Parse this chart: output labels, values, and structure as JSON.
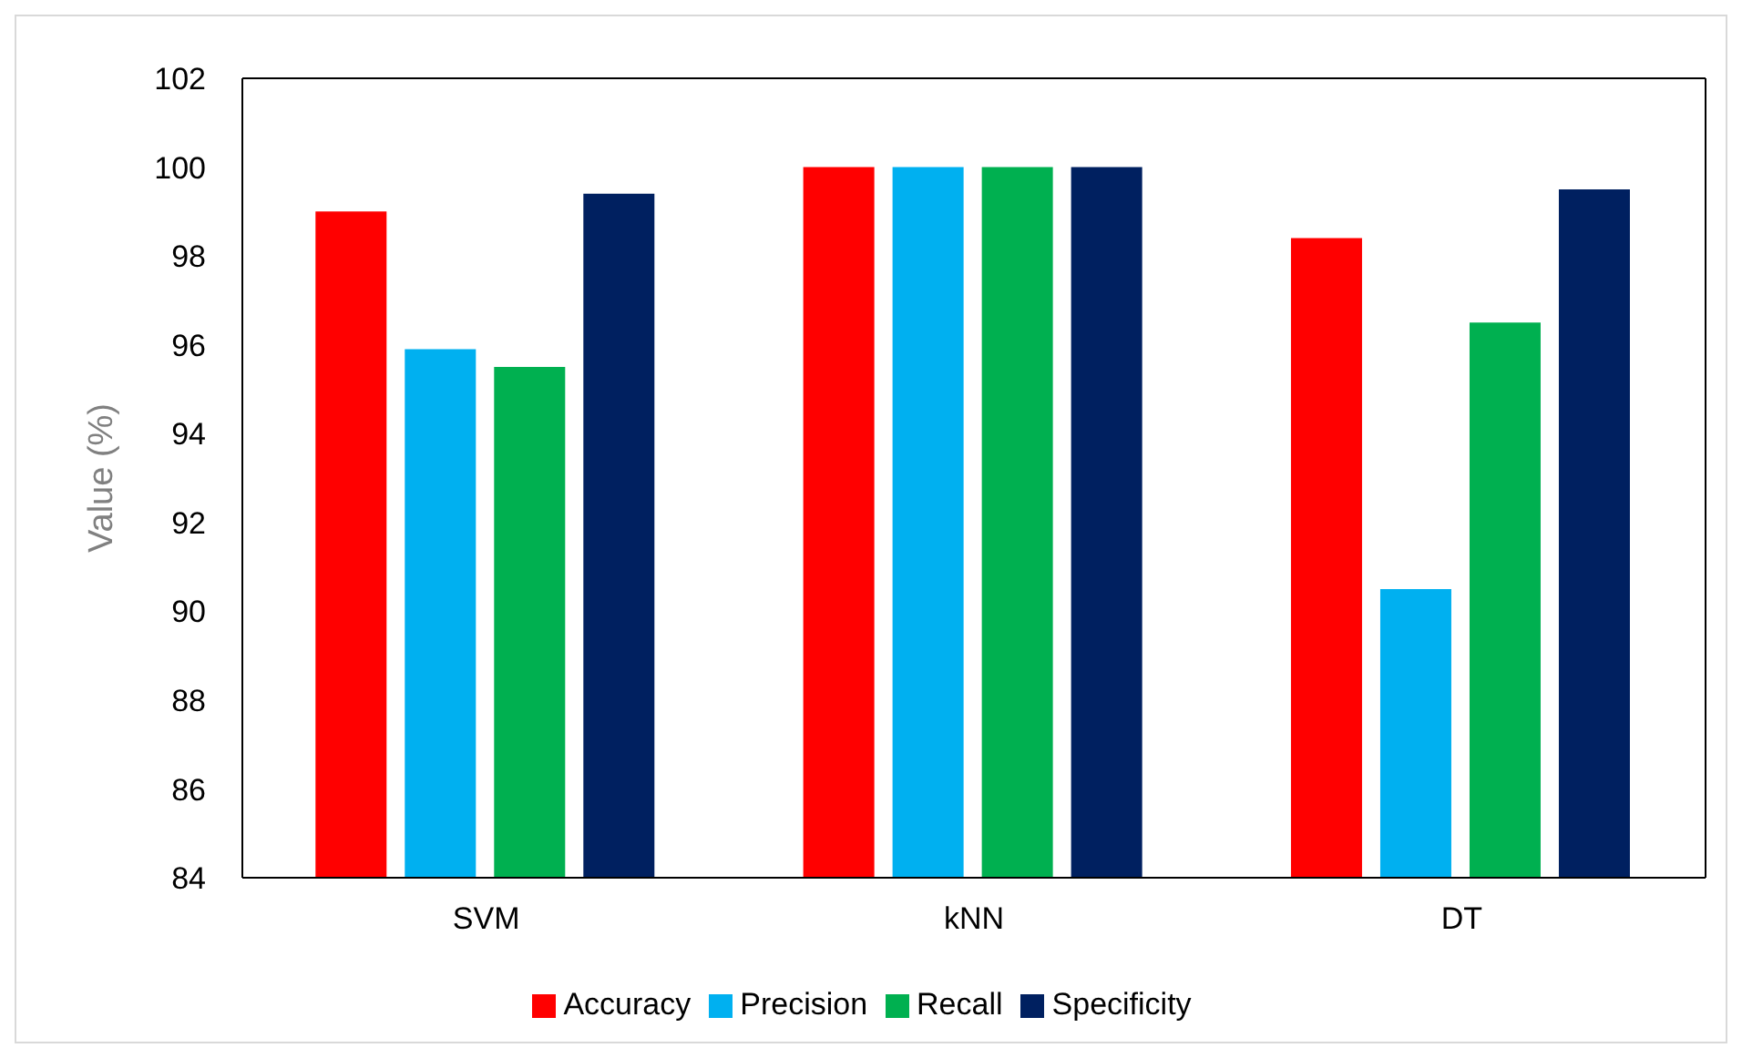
{
  "chart_data": {
    "type": "bar",
    "ylabel": "Value (%)",
    "categories": [
      "SVM",
      "kNN",
      "DT"
    ],
    "series": [
      {
        "name": "Accuracy",
        "color": "#ff0000",
        "values": [
          99.0,
          100,
          98.4
        ]
      },
      {
        "name": "Precision",
        "color": "#00b0f0",
        "values": [
          95.9,
          100,
          90.5
        ]
      },
      {
        "name": "Recall",
        "color": "#00b050",
        "values": [
          95.5,
          100,
          96.5
        ]
      },
      {
        "name": "Specificity",
        "color": "#002060",
        "values": [
          99.4,
          100,
          99.5
        ]
      }
    ],
    "ylim": [
      84,
      102
    ],
    "yticks": [
      84,
      86,
      88,
      90,
      92,
      94,
      96,
      98,
      100,
      102
    ],
    "grid": false,
    "legend": "bottom"
  }
}
